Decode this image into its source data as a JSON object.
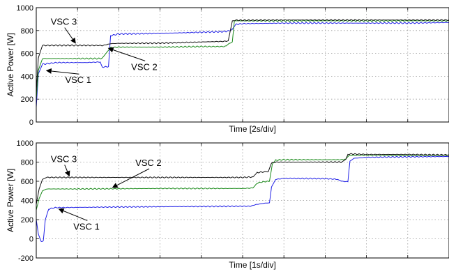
{
  "chart_data": [
    {
      "type": "line",
      "ylabel": "Active Power [W]",
      "xlabel": "Time [2s/div]",
      "ylim": [
        0,
        1000
      ],
      "yticks": [
        0,
        200,
        400,
        600,
        800,
        1000
      ],
      "x_divisions": 10,
      "grid": true,
      "series": [
        {
          "name": "VSC 1",
          "color": "#1f1fe6",
          "points": [
            [
              0,
              130
            ],
            [
              0.05,
              420
            ],
            [
              0.15,
              505
            ],
            [
              0.5,
              520
            ],
            [
              1.2,
              520
            ],
            [
              1.55,
              525
            ],
            [
              1.6,
              480
            ],
            [
              1.75,
              485
            ],
            [
              1.8,
              755
            ],
            [
              2.0,
              770
            ],
            [
              3.0,
              775
            ],
            [
              4.0,
              785
            ],
            [
              4.5,
              790
            ],
            [
              4.65,
              795
            ],
            [
              4.75,
              810
            ],
            [
              4.8,
              840
            ],
            [
              4.85,
              855
            ],
            [
              5,
              860
            ],
            [
              6,
              865
            ],
            [
              7,
              865
            ],
            [
              8,
              865
            ],
            [
              9,
              865
            ],
            [
              10,
              870
            ]
          ]
        },
        {
          "name": "VSC 2",
          "color": "#1a8a1a",
          "points": [
            [
              0,
              200
            ],
            [
              0.05,
              450
            ],
            [
              0.15,
              555
            ],
            [
              1.0,
              555
            ],
            [
              1.55,
              555
            ],
            [
              1.6,
              560
            ],
            [
              1.8,
              650
            ],
            [
              2.0,
              655
            ],
            [
              3.0,
              655
            ],
            [
              4.0,
              660
            ],
            [
              4.55,
              660
            ],
            [
              4.6,
              665
            ],
            [
              4.68,
              690
            ],
            [
              4.75,
              700
            ],
            [
              4.8,
              885
            ],
            [
              5,
              885
            ],
            [
              6,
              885
            ],
            [
              7,
              885
            ],
            [
              8,
              885
            ],
            [
              9,
              885
            ],
            [
              10,
              885
            ]
          ]
        },
        {
          "name": "VSC 3",
          "color": "#111111",
          "points": [
            [
              0,
              260
            ],
            [
              0.05,
              560
            ],
            [
              0.15,
              670
            ],
            [
              1.0,
              670
            ],
            [
              1.55,
              670
            ],
            [
              1.6,
              668
            ],
            [
              1.8,
              685
            ],
            [
              2.0,
              688
            ],
            [
              3.0,
              690
            ],
            [
              4.0,
              700
            ],
            [
              4.55,
              705
            ],
            [
              4.65,
              710
            ],
            [
              4.75,
              880
            ],
            [
              4.8,
              890
            ],
            [
              5,
              890
            ],
            [
              6,
              892
            ],
            [
              7,
              892
            ],
            [
              8,
              892
            ],
            [
              9,
              892
            ],
            [
              10,
              892
            ]
          ]
        }
      ],
      "annotations": [
        {
          "text": "VSC 3",
          "series": "VSC 3",
          "pos": [
            0.35,
            850
          ],
          "target": [
            0.95,
            690
          ]
        },
        {
          "text": "VSC 2",
          "series": "VSC 2",
          "pos": [
            2.3,
            455
          ],
          "target": [
            1.75,
            645
          ]
        },
        {
          "text": "VSC 1",
          "series": "VSC 1",
          "pos": [
            0.7,
            340
          ],
          "target": [
            0.25,
            450
          ]
        }
      ]
    },
    {
      "type": "line",
      "ylabel": "Active Power [W]",
      "xlabel": "Time [1s/div]",
      "ylim": [
        -200,
        1000
      ],
      "yticks": [
        -200,
        0,
        200,
        400,
        600,
        800,
        1000
      ],
      "x_divisions": 10,
      "grid": true,
      "series": [
        {
          "name": "VSC 1",
          "color": "#1f1fe6",
          "points": [
            [
              0,
              200
            ],
            [
              0.05,
              50
            ],
            [
              0.12,
              -30
            ],
            [
              0.17,
              -20
            ],
            [
              0.22,
              200
            ],
            [
              0.3,
              310
            ],
            [
              0.45,
              325
            ],
            [
              1.5,
              330
            ],
            [
              3.0,
              335
            ],
            [
              5.2,
              340
            ],
            [
              5.3,
              355
            ],
            [
              5.5,
              370
            ],
            [
              5.65,
              375
            ],
            [
              5.7,
              540
            ],
            [
              5.8,
              620
            ],
            [
              6.0,
              630
            ],
            [
              7.0,
              628
            ],
            [
              7.3,
              620
            ],
            [
              7.4,
              600
            ],
            [
              7.55,
              595
            ],
            [
              7.6,
              810
            ],
            [
              7.7,
              840
            ],
            [
              8.0,
              850
            ],
            [
              9.0,
              855
            ],
            [
              10,
              858
            ]
          ]
        },
        {
          "name": "VSC 2",
          "color": "#1a8a1a",
          "points": [
            [
              0,
              300
            ],
            [
              0.07,
              420
            ],
            [
              0.15,
              500
            ],
            [
              0.25,
              520
            ],
            [
              1.0,
              520
            ],
            [
              3.0,
              525
            ],
            [
              5.0,
              525
            ],
            [
              5.25,
              530
            ],
            [
              5.35,
              580
            ],
            [
              5.5,
              595
            ],
            [
              5.65,
              600
            ],
            [
              5.72,
              780
            ],
            [
              5.8,
              820
            ],
            [
              6,
              825
            ],
            [
              7,
              825
            ],
            [
              7.4,
              825
            ],
            [
              7.5,
              830
            ],
            [
              7.55,
              860
            ],
            [
              7.6,
              870
            ],
            [
              8,
              872
            ],
            [
              9,
              870
            ],
            [
              10,
              870
            ]
          ]
        },
        {
          "name": "VSC 3",
          "color": "#111111",
          "points": [
            [
              0,
              360
            ],
            [
              0.07,
              520
            ],
            [
              0.15,
              620
            ],
            [
              0.25,
              640
            ],
            [
              1.0,
              640
            ],
            [
              3.0,
              640
            ],
            [
              5.0,
              640
            ],
            [
              5.25,
              645
            ],
            [
              5.35,
              690
            ],
            [
              5.5,
              698
            ],
            [
              5.62,
              700
            ],
            [
              5.7,
              790
            ],
            [
              5.8,
              800
            ],
            [
              6,
              800
            ],
            [
              7,
              800
            ],
            [
              7.4,
              800
            ],
            [
              7.5,
              830
            ],
            [
              7.55,
              880
            ],
            [
              7.6,
              885
            ],
            [
              8,
              880
            ],
            [
              9,
              880
            ],
            [
              10,
              875
            ]
          ]
        }
      ],
      "annotations": [
        {
          "text": "VSC 3",
          "series": "VSC 3",
          "pos": [
            0.35,
            800
          ],
          "target": [
            0.8,
            655
          ]
        },
        {
          "text": "VSC 2",
          "series": "VSC 2",
          "pos": [
            2.4,
            760
          ],
          "target": [
            1.85,
            535
          ]
        },
        {
          "text": "VSC 1",
          "series": "VSC 1",
          "pos": [
            0.9,
            95
          ],
          "target": [
            0.55,
            310
          ]
        }
      ]
    }
  ]
}
